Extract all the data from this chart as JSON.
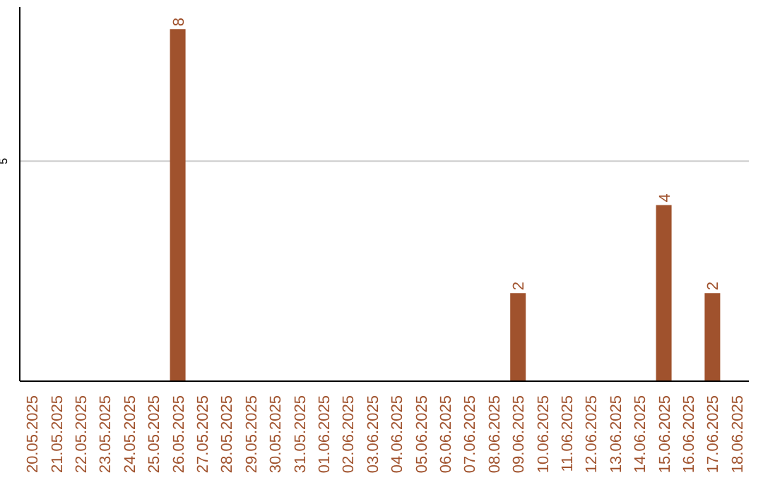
{
  "chart_data": {
    "type": "bar",
    "categories": [
      "20.05.2025",
      "21.05.2025",
      "22.05.2025",
      "23.05.2025",
      "24.05.2025",
      "25.05.2025",
      "26.05.2025",
      "27.05.2025",
      "28.05.2025",
      "29.05.2025",
      "30.05.2025",
      "31.05.2025",
      "01.06.2025",
      "02.06.2025",
      "03.06.2025",
      "04.06.2025",
      "05.06.2025",
      "06.06.2025",
      "07.06.2025",
      "08.06.2025",
      "09.06.2025",
      "10.06.2025",
      "11.06.2025",
      "12.06.2025",
      "13.06.2025",
      "14.06.2025",
      "15.06.2025",
      "16.06.2025",
      "17.06.2025",
      "18.06.2025"
    ],
    "values": [
      0,
      0,
      0,
      0,
      0,
      0,
      8,
      0,
      0,
      0,
      0,
      0,
      0,
      0,
      0,
      0,
      0,
      0,
      0,
      0,
      2,
      0,
      0,
      0,
      0,
      0,
      4,
      0,
      2,
      0
    ],
    "value_labels": [
      null,
      null,
      null,
      null,
      null,
      null,
      "8",
      null,
      null,
      null,
      null,
      null,
      null,
      null,
      null,
      null,
      null,
      null,
      null,
      null,
      "2",
      null,
      null,
      null,
      null,
      null,
      "4",
      null,
      "2",
      null
    ],
    "color": "#a0522d",
    "ylim": [
      0,
      8.5
    ],
    "yticks": [
      5
    ],
    "grid": "y"
  }
}
